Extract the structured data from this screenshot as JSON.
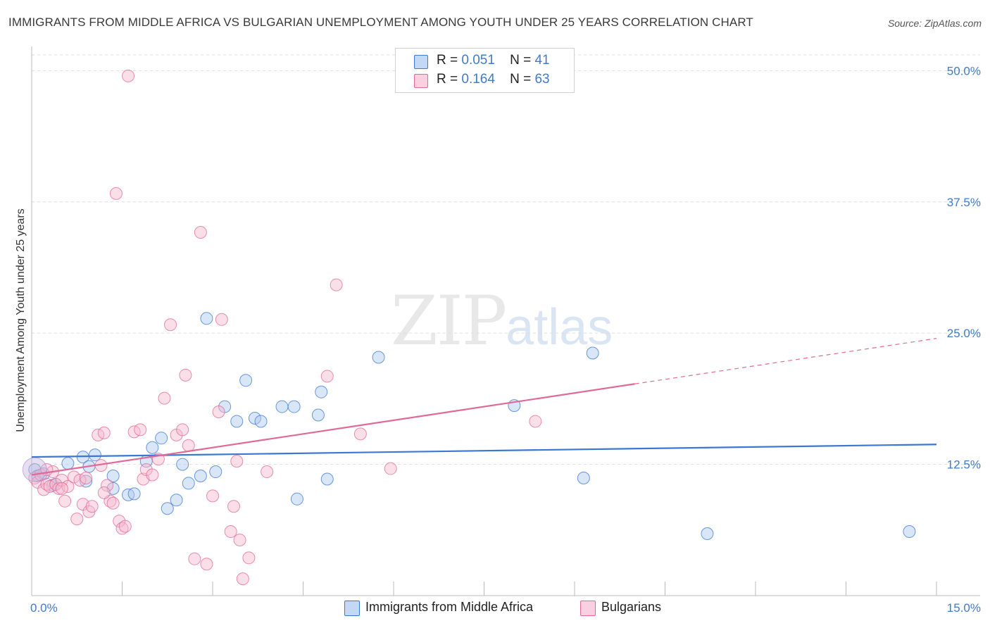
{
  "title": "IMMIGRANTS FROM MIDDLE AFRICA VS BULGARIAN UNEMPLOYMENT AMONG YOUTH UNDER 25 YEARS CORRELATION CHART",
  "source": "Source: ZipAtlas.com",
  "watermark": {
    "zip": "ZIP",
    "atlas": "atlas"
  },
  "legend_top": {
    "rows": [
      {
        "r_label": "R =",
        "r_value": "0.051",
        "n_label": "N =",
        "n_value": "41"
      },
      {
        "r_label": "R =",
        "r_value": "0.164",
        "n_label": "N =",
        "n_value": "63"
      }
    ]
  },
  "legend_bottom": {
    "items": [
      {
        "label": "Immigrants from Middle Africa"
      },
      {
        "label": "Bulgarians"
      }
    ]
  },
  "chart_data": {
    "type": "scatter",
    "title": "IMMIGRANTS FROM MIDDLE AFRICA VS BULGARIAN UNEMPLOYMENT AMONG YOUTH UNDER 25 YEARS CORRELATION CHART",
    "xlabel": "",
    "ylabel": "Unemployment Among Youth under 25 years",
    "xlim": [
      0,
      15
    ],
    "ylim": [
      0,
      51.5
    ],
    "x_tick_labels": [
      "0.0%",
      "15.0%"
    ],
    "y_ticks": [
      12.5,
      25.0,
      37.5,
      50.0
    ],
    "y_tick_labels": [
      "12.5%",
      "25.0%",
      "37.5%",
      "50.0%"
    ],
    "colors": {
      "blue": "#3a78d1",
      "blue_fill": "#aac8f0",
      "pink": "#e06a97",
      "pink_fill": "#f6b8cc"
    },
    "series": [
      {
        "name": "Immigrants from Middle Africa",
        "color": "#3a78d1",
        "trend": {
          "x0": 0.0,
          "y0": 13.2,
          "x1": 15.0,
          "y1": 14.4,
          "dashed_from": null
        },
        "points": [
          [
            0.05,
            12.0
          ],
          [
            0.1,
            11.4
          ],
          [
            0.2,
            11.6
          ],
          [
            0.35,
            10.5
          ],
          [
            0.4,
            10.6
          ],
          [
            0.6,
            12.6
          ],
          [
            0.85,
            13.2
          ],
          [
            1.05,
            13.4
          ],
          [
            0.95,
            12.3
          ],
          [
            0.9,
            10.9
          ],
          [
            1.35,
            11.4
          ],
          [
            1.35,
            10.2
          ],
          [
            1.6,
            9.6
          ],
          [
            1.7,
            9.7
          ],
          [
            1.9,
            12.8
          ],
          [
            2.0,
            14.1
          ],
          [
            2.15,
            15.0
          ],
          [
            2.25,
            8.3
          ],
          [
            2.4,
            9.1
          ],
          [
            2.5,
            12.5
          ],
          [
            2.6,
            10.7
          ],
          [
            2.8,
            11.4
          ],
          [
            2.9,
            26.4
          ],
          [
            3.05,
            11.8
          ],
          [
            3.2,
            18.0
          ],
          [
            3.4,
            16.6
          ],
          [
            3.55,
            20.5
          ],
          [
            3.7,
            16.9
          ],
          [
            3.8,
            16.6
          ],
          [
            4.15,
            18.0
          ],
          [
            4.35,
            18.0
          ],
          [
            4.4,
            9.2
          ],
          [
            4.75,
            17.2
          ],
          [
            4.8,
            19.4
          ],
          [
            4.9,
            11.1
          ],
          [
            5.75,
            22.7
          ],
          [
            8.0,
            18.1
          ],
          [
            9.15,
            11.2
          ],
          [
            9.3,
            23.1
          ],
          [
            11.2,
            5.9
          ],
          [
            14.55,
            6.1
          ]
        ]
      },
      {
        "name": "Bulgarians",
        "color": "#e06a97",
        "trend": {
          "x0": 0.0,
          "y0": 11.5,
          "x1": 15.0,
          "y1": 24.5,
          "dashed_from": 10.0
        },
        "points": [
          [
            0.05,
            11.2
          ],
          [
            0.1,
            10.8
          ],
          [
            0.15,
            11.5
          ],
          [
            0.2,
            10.1
          ],
          [
            0.25,
            10.6
          ],
          [
            0.3,
            10.4
          ],
          [
            0.35,
            11.8
          ],
          [
            0.4,
            10.6
          ],
          [
            0.45,
            10.2
          ],
          [
            0.5,
            11.0
          ],
          [
            0.55,
            9.0
          ],
          [
            0.6,
            10.4
          ],
          [
            0.7,
            11.3
          ],
          [
            0.75,
            7.3
          ],
          [
            0.8,
            11.0
          ],
          [
            0.85,
            8.7
          ],
          [
            0.9,
            11.2
          ],
          [
            0.95,
            8.0
          ],
          [
            1.0,
            8.5
          ],
          [
            1.1,
            15.3
          ],
          [
            1.15,
            12.4
          ],
          [
            1.2,
            15.5
          ],
          [
            1.25,
            10.5
          ],
          [
            1.3,
            9.0
          ],
          [
            1.35,
            8.8
          ],
          [
            1.45,
            7.1
          ],
          [
            1.5,
            6.4
          ],
          [
            1.55,
            6.6
          ],
          [
            1.4,
            38.3
          ],
          [
            1.6,
            49.5
          ],
          [
            1.7,
            15.6
          ],
          [
            1.8,
            15.8
          ],
          [
            1.85,
            11.1
          ],
          [
            1.9,
            12.0
          ],
          [
            2.0,
            11.5
          ],
          [
            2.1,
            13.0
          ],
          [
            2.2,
            18.8
          ],
          [
            2.3,
            25.8
          ],
          [
            2.4,
            15.3
          ],
          [
            2.5,
            15.8
          ],
          [
            2.6,
            14.3
          ],
          [
            2.55,
            21.0
          ],
          [
            2.7,
            3.5
          ],
          [
            2.9,
            3.0
          ],
          [
            2.8,
            34.6
          ],
          [
            3.0,
            9.5
          ],
          [
            3.1,
            17.5
          ],
          [
            3.15,
            26.3
          ],
          [
            3.3,
            6.1
          ],
          [
            3.35,
            8.5
          ],
          [
            3.4,
            12.8
          ],
          [
            3.45,
            5.3
          ],
          [
            3.5,
            1.6
          ],
          [
            3.6,
            3.6
          ],
          [
            3.9,
            11.8
          ],
          [
            4.9,
            20.9
          ],
          [
            5.05,
            29.6
          ],
          [
            5.45,
            15.4
          ],
          [
            5.95,
            12.1
          ],
          [
            8.35,
            16.6
          ],
          [
            0.5,
            10.2
          ],
          [
            1.2,
            9.8
          ],
          [
            0.25,
            12.0
          ]
        ]
      }
    ]
  }
}
